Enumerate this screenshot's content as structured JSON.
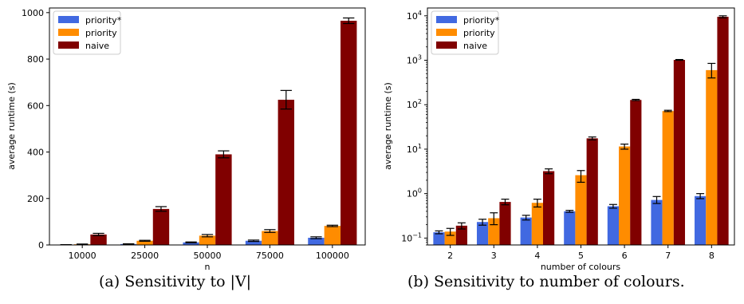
{
  "colors": {
    "priority_star": "#4169E1",
    "priority": "#FF8C00",
    "naive": "#800000"
  },
  "chart_data": [
    {
      "type": "bar",
      "caption": "(a) Sensitivity to |V|",
      "xlabel": "n",
      "ylabel": "average runtime (s)",
      "scale": "linear",
      "ylim": [
        0,
        1020
      ],
      "yticks": [
        0,
        200,
        400,
        600,
        800,
        1000
      ],
      "categories": [
        "10000",
        "25000",
        "50000",
        "75000",
        "100000"
      ],
      "legend_position": "top-left",
      "series": [
        {
          "name": "priority*",
          "values": [
            1,
            4,
            11,
            18,
            31
          ],
          "errors": [
            0.5,
            1,
            2,
            3,
            4
          ]
        },
        {
          "name": "priority",
          "values": [
            3,
            18,
            40,
            60,
            82
          ],
          "errors": [
            1,
            2,
            5,
            6,
            3
          ]
        },
        {
          "name": "naive",
          "values": [
            45,
            155,
            390,
            625,
            965
          ],
          "errors": [
            5,
            10,
            15,
            40,
            12
          ]
        }
      ]
    },
    {
      "type": "bar",
      "caption": "(b) Sensitivity to number of colours.",
      "xlabel": "number of colours",
      "ylabel": "average runtime (s)",
      "scale": "log",
      "ylim": [
        0.07,
        15000
      ],
      "ytick_labels": [
        {
          "value": 0.1,
          "base": "10",
          "exp": "−1"
        },
        {
          "value": 1,
          "base": "10",
          "exp": "0"
        },
        {
          "value": 10,
          "base": "10",
          "exp": "1"
        },
        {
          "value": 100,
          "base": "10",
          "exp": "2"
        },
        {
          "value": 1000,
          "base": "10",
          "exp": "3"
        },
        {
          "value": 10000,
          "base": "10",
          "exp": "4"
        }
      ],
      "categories": [
        "2",
        "3",
        "4",
        "5",
        "6",
        "7",
        "8"
      ],
      "legend_position": "top-left",
      "series": [
        {
          "name": "priority*",
          "values": [
            0.135,
            0.23,
            0.29,
            0.4,
            0.52,
            0.72,
            0.88
          ],
          "err_low": [
            0.125,
            0.195,
            0.255,
            0.38,
            0.47,
            0.6,
            0.77
          ],
          "err_high": [
            0.145,
            0.265,
            0.325,
            0.42,
            0.57,
            0.86,
            1.0
          ]
        },
        {
          "name": "priority",
          "values": [
            0.14,
            0.28,
            0.62,
            2.6,
            11.5,
            72,
            600
          ],
          "err_low": [
            0.115,
            0.2,
            0.5,
            1.8,
            10,
            70,
            400
          ],
          "err_high": [
            0.165,
            0.37,
            0.75,
            3.3,
            13,
            75,
            850
          ]
        },
        {
          "name": "naive",
          "values": [
            0.19,
            0.65,
            3.2,
            17.5,
            128,
            1020,
            9500
          ],
          "err_low": [
            0.16,
            0.56,
            2.8,
            16.2,
            124,
            1000,
            9000
          ],
          "err_high": [
            0.22,
            0.75,
            3.6,
            18.8,
            132,
            1040,
            10000
          ]
        }
      ]
    }
  ]
}
